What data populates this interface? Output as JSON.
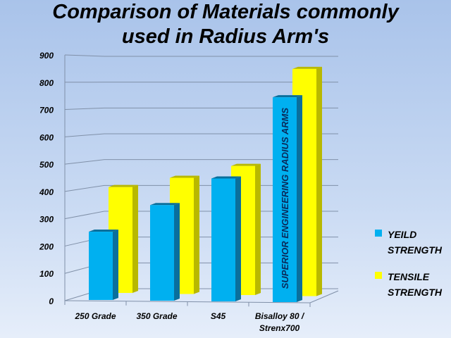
{
  "chart_data": {
    "type": "bar",
    "title": "Comparison of Materials commonly used in Radius Arm's",
    "categories": [
      "250 Grade",
      "350 Grade",
      "S45",
      "Bisalloy 80 / Strenx700"
    ],
    "series": [
      {
        "name": "YEILD STRENGTH",
        "values": [
          250,
          350,
          450,
          750
        ],
        "color": "#00b0f0"
      },
      {
        "name": "TENSILE STRENGTH",
        "values": [
          410,
          450,
          500,
          880
        ],
        "color": "#ffff00"
      }
    ],
    "yticks": [
      0,
      100,
      200,
      300,
      400,
      500,
      600,
      700,
      800,
      900
    ],
    "ylim": [
      0,
      900
    ],
    "grid": true,
    "legend": "right",
    "annotation": "SUPERIOR ENGINEERING RADIUS ARMS",
    "style": "3d-column"
  }
}
